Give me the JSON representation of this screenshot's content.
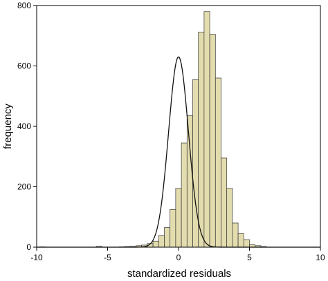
{
  "chart_data": {
    "type": "bar",
    "title": "",
    "xlabel": "standardized residuals",
    "ylabel": "frequency",
    "xlim": [
      -10,
      10
    ],
    "ylim": [
      0,
      800
    ],
    "x_ticks": [
      -10,
      -5,
      0,
      5,
      10
    ],
    "y_ticks": [
      0,
      200,
      400,
      600,
      800
    ],
    "bin_width": 0.4,
    "bar_color": "#e3dcae",
    "bar_edge_color": "#333333",
    "curve_color": "#111111",
    "grid": false,
    "bins": [
      {
        "x0": -9.8,
        "count": 1
      },
      {
        "x0": -5.8,
        "count": 3
      },
      {
        "x0": -4.2,
        "count": 1
      },
      {
        "x0": -3.8,
        "count": 2
      },
      {
        "x0": -3.4,
        "count": 3
      },
      {
        "x0": -3.0,
        "count": 5
      },
      {
        "x0": -2.6,
        "count": 7
      },
      {
        "x0": -2.2,
        "count": 12
      },
      {
        "x0": -1.8,
        "count": 20
      },
      {
        "x0": -1.4,
        "count": 38
      },
      {
        "x0": -1.0,
        "count": 65
      },
      {
        "x0": -0.6,
        "count": 125
      },
      {
        "x0": -0.2,
        "count": 195
      },
      {
        "x0": 0.2,
        "count": 345
      },
      {
        "x0": 0.6,
        "count": 435
      },
      {
        "x0": 1.0,
        "count": 555
      },
      {
        "x0": 1.4,
        "count": 712
      },
      {
        "x0": 1.8,
        "count": 780
      },
      {
        "x0": 2.2,
        "count": 705
      },
      {
        "x0": 2.6,
        "count": 560
      },
      {
        "x0": 3.0,
        "count": 295
      },
      {
        "x0": 3.4,
        "count": 195
      },
      {
        "x0": 3.8,
        "count": 80
      },
      {
        "x0": 4.2,
        "count": 45
      },
      {
        "x0": 4.6,
        "count": 25
      },
      {
        "x0": 5.0,
        "count": 8
      },
      {
        "x0": 5.4,
        "count": 5
      },
      {
        "x0": 5.8,
        "count": 2
      }
    ],
    "normal_curve": {
      "mean": 0.0,
      "sd": 0.7,
      "peak": 630
    }
  }
}
